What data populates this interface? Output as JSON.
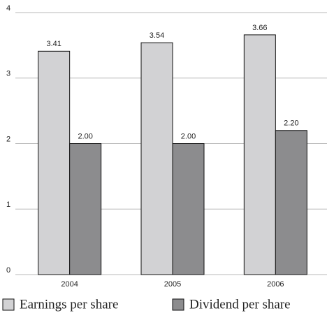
{
  "chart_data": {
    "type": "bar",
    "categories": [
      "2004",
      "2005",
      "2006"
    ],
    "series": [
      {
        "name": "Earnings per share",
        "color": "#d2d2d4",
        "values": [
          3.41,
          3.54,
          3.66
        ],
        "value_labels": [
          "3.41",
          "3.54",
          "3.66"
        ]
      },
      {
        "name": "Dividend per share",
        "color": "#8c8c8e",
        "values": [
          2,
          2,
          2.2
        ],
        "value_labels": [
          "2.00",
          "2.00",
          "2.20"
        ]
      }
    ],
    "ylim": [
      0,
      4
    ],
    "yticks": [
      0,
      1,
      2,
      3,
      4
    ],
    "grid": true,
    "legend": "bottom"
  }
}
